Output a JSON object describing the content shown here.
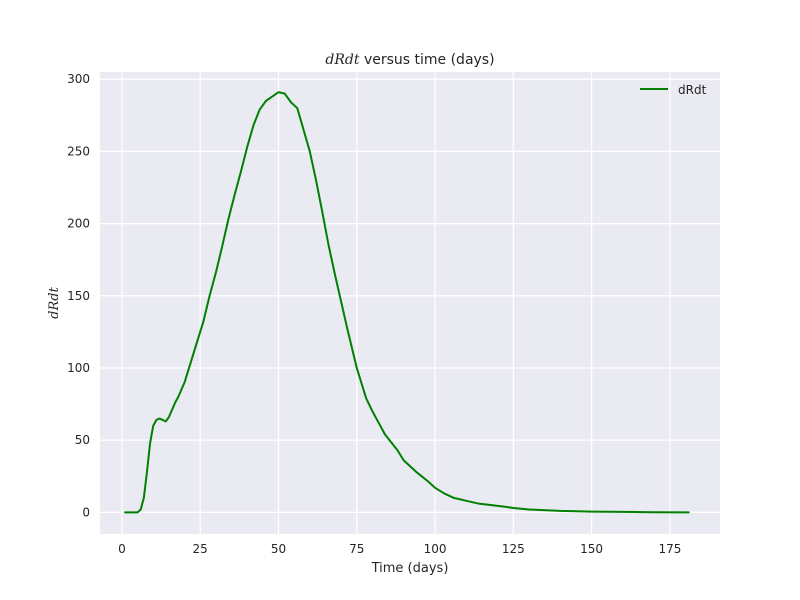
{
  "chart_data": {
    "type": "line",
    "title": {
      "math": "dRdt",
      "rest": " versus time (days)"
    },
    "xlabel": "Time (days)",
    "ylabel": "dRdt",
    "xlim": [
      -7,
      191
    ],
    "ylim": [
      -15,
      305
    ],
    "xticks": [
      0,
      25,
      50,
      75,
      100,
      125,
      150,
      175
    ],
    "yticks": [
      0,
      50,
      100,
      150,
      200,
      250,
      300
    ],
    "grid": true,
    "legend": {
      "position": "top-right",
      "entries": [
        "dRdt"
      ]
    },
    "series": [
      {
        "name": "dRdt",
        "color": "#008000",
        "x": [
          1,
          3,
          5,
          6,
          7,
          8,
          9,
          10,
          11,
          12,
          13,
          14,
          15,
          16,
          17,
          18,
          20,
          22,
          24,
          26,
          28,
          30,
          32,
          34,
          36,
          38,
          40,
          42,
          44,
          46,
          48,
          50,
          52,
          53,
          54,
          56,
          58,
          60,
          62,
          64,
          66,
          68,
          70,
          72,
          75,
          78,
          80,
          84,
          88,
          90,
          94,
          98,
          100,
          103,
          106,
          110,
          114,
          118,
          122,
          125,
          130,
          140,
          150,
          160,
          170,
          181
        ],
        "y": [
          0,
          0,
          0,
          2,
          10,
          28,
          48,
          60,
          64,
          65,
          64,
          63,
          66,
          71,
          76,
          80,
          90,
          104,
          118,
          132,
          150,
          166,
          184,
          203,
          220,
          236,
          253,
          268,
          279,
          285,
          288,
          291,
          290,
          287,
          284,
          280,
          265,
          250,
          230,
          208,
          185,
          165,
          146,
          127,
          100,
          79,
          70,
          54,
          43,
          36,
          28,
          21,
          17,
          13,
          10,
          8,
          6,
          5,
          4,
          3,
          2,
          1,
          0.5,
          0.3,
          0.1,
          0
        ]
      }
    ]
  }
}
